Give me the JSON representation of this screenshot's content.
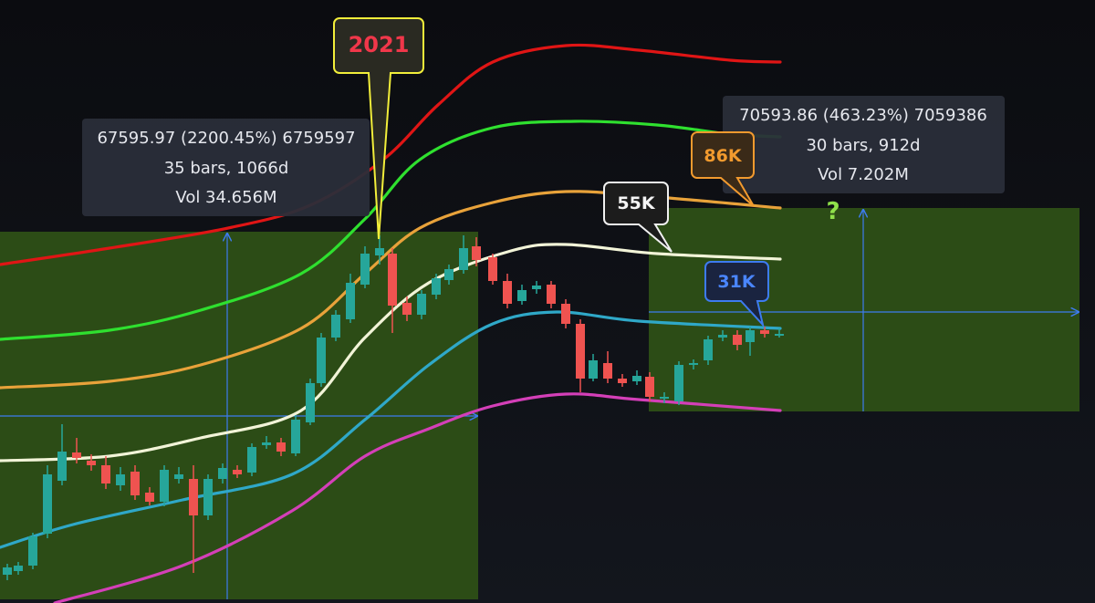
{
  "measure_boxes": [
    {
      "line1": "67595.97 (2200.45%) 6759597",
      "line2": "35 bars, 1066d",
      "line3": "Vol 34.656M"
    },
    {
      "line1": "70593.86 (463.23%) 7059386",
      "line2": "30 bars, 912d",
      "line3": "Vol 7.202M"
    }
  ],
  "callouts": [
    {
      "label": "2021"
    },
    {
      "label": "86K"
    },
    {
      "label": "55K"
    },
    {
      "label": "31K"
    }
  ],
  "question_mark": "?"
}
